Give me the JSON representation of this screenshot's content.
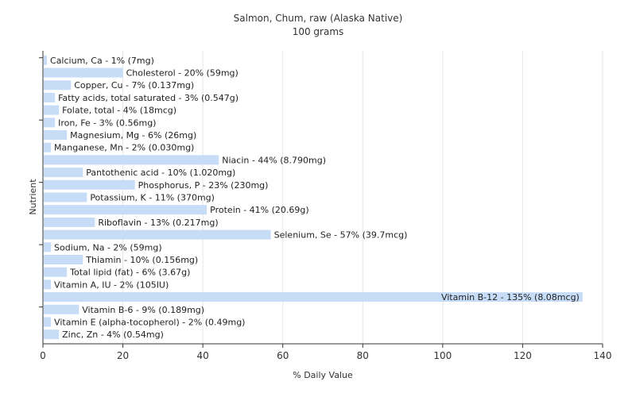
{
  "chart_data": {
    "type": "bar",
    "orientation": "horizontal",
    "title": "Salmon, Chum, raw (Alaska Native)",
    "subtitle": "100 grams",
    "xlabel": "% Daily Value",
    "ylabel": "Nutrient",
    "xlim": [
      0,
      140
    ],
    "xticks": [
      0,
      20,
      40,
      60,
      80,
      100,
      120,
      140
    ],
    "grid": true,
    "bar_color": "#c6dcf7",
    "categories": [
      "Calcium, Ca",
      "Cholesterol",
      "Copper, Cu",
      "Fatty acids, total saturated",
      "Folate, total",
      "Iron, Fe",
      "Magnesium, Mg",
      "Manganese, Mn",
      "Niacin",
      "Pantothenic acid",
      "Phosphorus, P",
      "Potassium, K",
      "Protein",
      "Riboflavin",
      "Selenium, Se",
      "Sodium, Na",
      "Thiamin",
      "Total lipid (fat)",
      "Vitamin A, IU",
      "Vitamin B-12",
      "Vitamin B-6",
      "Vitamin E (alpha-tocopherol)",
      "Zinc, Zn"
    ],
    "values": [
      1,
      20,
      7,
      3,
      4,
      3,
      6,
      2,
      44,
      10,
      23,
      11,
      41,
      13,
      57,
      2,
      10,
      6,
      2,
      135,
      9,
      2,
      4
    ],
    "labels": [
      "Calcium, Ca - 1% (7mg)",
      "Cholesterol - 20% (59mg)",
      "Copper, Cu - 7% (0.137mg)",
      "Fatty acids, total saturated - 3% (0.547g)",
      "Folate, total - 4% (18mcg)",
      "Iron, Fe - 3% (0.56mg)",
      "Magnesium, Mg - 6% (26mg)",
      "Manganese, Mn - 2% (0.030mg)",
      "Niacin - 44% (8.790mg)",
      "Pantothenic acid - 10% (1.020mg)",
      "Phosphorus, P - 23% (230mg)",
      "Potassium, K - 11% (370mg)",
      "Protein - 41% (20.69g)",
      "Riboflavin - 13% (0.217mg)",
      "Selenium, Se - 57% (39.7mcg)",
      "Sodium, Na - 2% (59mg)",
      "Thiamin - 10% (0.156mg)",
      "Total lipid (fat) - 6% (3.67g)",
      "Vitamin A, IU - 2% (105IU)",
      "Vitamin B-12 - 135% (8.08mcg)",
      "Vitamin B-6 - 9% (0.189mg)",
      "Vitamin E (alpha-tocopherol) - 2% (0.49mg)",
      "Zinc, Zn - 4% (0.54mg)"
    ]
  }
}
